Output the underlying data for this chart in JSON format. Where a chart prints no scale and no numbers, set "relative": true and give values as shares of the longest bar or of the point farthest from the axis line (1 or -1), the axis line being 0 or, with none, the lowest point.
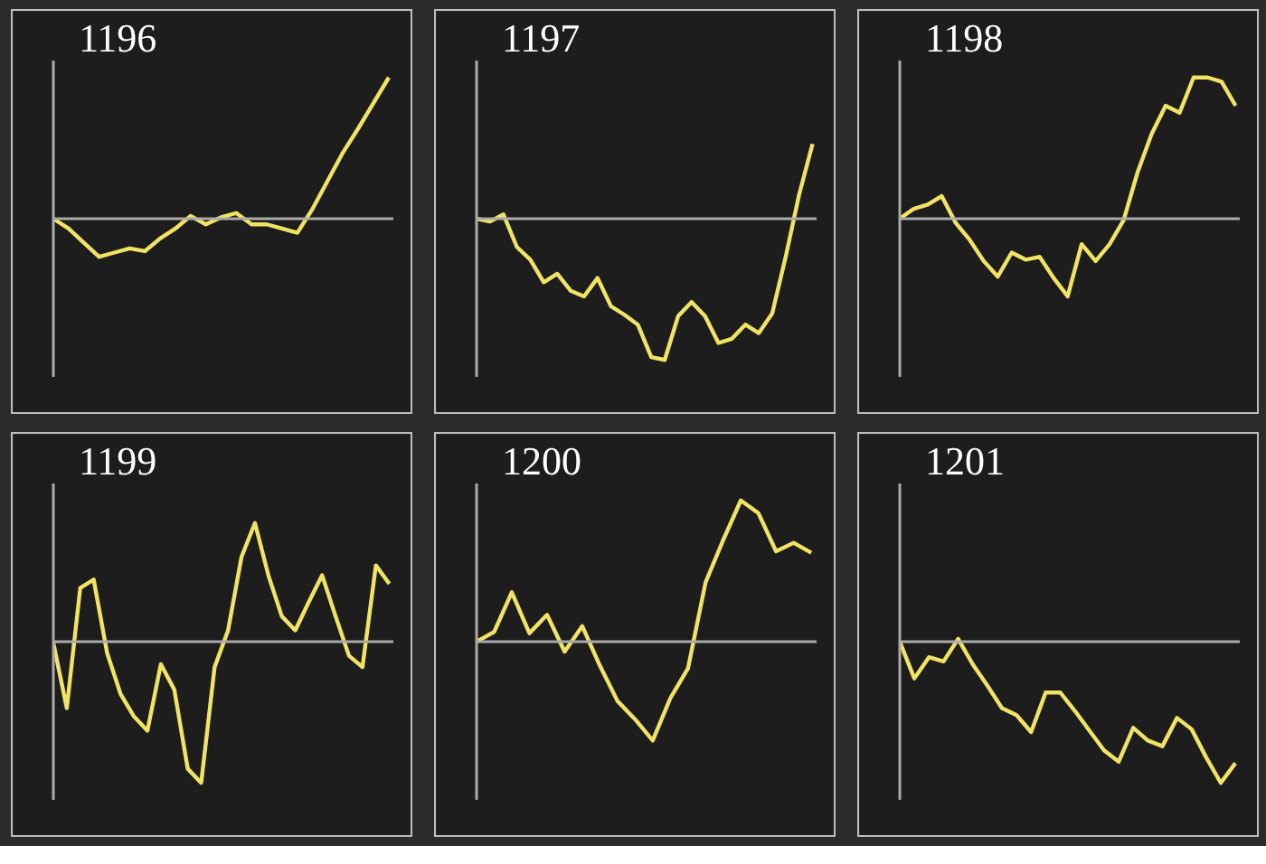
{
  "chart_data": [
    {
      "type": "line",
      "title": "1196",
      "relative": true,
      "color": "#f2e463",
      "categories": [
        null,
        null,
        null,
        null,
        null,
        null,
        null,
        null,
        null,
        null,
        null,
        null,
        null,
        null,
        null,
        null,
        null,
        null,
        null,
        null,
        null,
        null,
        null
      ],
      "values": [
        0,
        -0.07,
        -0.17,
        -0.27,
        -0.24,
        -0.21,
        -0.23,
        -0.14,
        -0.07,
        0.02,
        -0.04,
        0.01,
        0.04,
        -0.04,
        -0.04,
        -0.07,
        -0.1,
        0.07,
        0.27,
        0.47,
        0.64,
        0.82,
        1
      ]
    },
    {
      "type": "line",
      "title": "1197",
      "relative": true,
      "color": "#f2e463",
      "categories": [
        null,
        null,
        null,
        null,
        null,
        null,
        null,
        null,
        null,
        null,
        null,
        null,
        null,
        null,
        null,
        null,
        null,
        null,
        null,
        null,
        null,
        null,
        null,
        null,
        null,
        null
      ],
      "values": [
        0,
        -0.02,
        0.03,
        -0.2,
        -0.29,
        -0.45,
        -0.39,
        -0.51,
        -0.55,
        -0.42,
        -0.62,
        -0.68,
        -0.75,
        -0.98,
        -1,
        -0.69,
        -0.59,
        -0.69,
        -0.88,
        -0.85,
        -0.75,
        -0.81,
        -0.67,
        -0.27,
        0.17,
        0.53
      ]
    },
    {
      "type": "line",
      "title": "1198",
      "relative": true,
      "color": "#f2e463",
      "categories": [
        null,
        null,
        null,
        null,
        null,
        null,
        null,
        null,
        null,
        null,
        null,
        null,
        null,
        null,
        null,
        null,
        null,
        null,
        null,
        null,
        null,
        null,
        null,
        null,
        null
      ],
      "values": [
        0,
        0.07,
        0.1,
        0.16,
        -0.03,
        -0.15,
        -0.3,
        -0.41,
        -0.24,
        -0.29,
        -0.27,
        -0.42,
        -0.55,
        -0.18,
        -0.3,
        -0.18,
        -0.01,
        0.33,
        0.6,
        0.8,
        0.75,
        1,
        1,
        0.97,
        0.8
      ]
    },
    {
      "type": "line",
      "title": "1199",
      "relative": true,
      "color": "#f2e463",
      "categories": [
        null,
        null,
        null,
        null,
        null,
        null,
        null,
        null,
        null,
        null,
        null,
        null,
        null,
        null,
        null,
        null,
        null,
        null,
        null,
        null,
        null,
        null,
        null,
        null,
        null,
        null
      ],
      "values": [
        -0.01,
        -0.47,
        0.38,
        0.44,
        -0.08,
        -0.37,
        -0.53,
        -0.63,
        -0.16,
        -0.34,
        -0.9,
        -1,
        -0.18,
        0.08,
        0.6,
        0.84,
        0.47,
        0.18,
        0.08,
        0.28,
        0.47,
        0.18,
        -0.1,
        -0.18,
        0.54,
        0.41
      ]
    },
    {
      "type": "line",
      "title": "1200",
      "relative": true,
      "color": "#f2e463",
      "categories": [
        null,
        null,
        null,
        null,
        null,
        null,
        null,
        null,
        null,
        null,
        null,
        null,
        null,
        null,
        null,
        null,
        null,
        null,
        null,
        null
      ],
      "values": [
        0,
        0.07,
        0.35,
        0.06,
        0.19,
        -0.07,
        0.11,
        -0.17,
        -0.42,
        -0.55,
        -0.7,
        -0.4,
        -0.19,
        0.42,
        0.72,
        1,
        0.91,
        0.64,
        0.7,
        0.63
      ]
    },
    {
      "type": "line",
      "title": "1201",
      "relative": true,
      "color": "#f2e463",
      "categories": [
        null,
        null,
        null,
        null,
        null,
        null,
        null,
        null,
        null,
        null,
        null,
        null,
        null,
        null,
        null,
        null,
        null,
        null,
        null,
        null,
        null,
        null,
        null,
        null
      ],
      "values": [
        0,
        -0.26,
        -0.11,
        -0.14,
        0.02,
        -0.16,
        -0.31,
        -0.47,
        -0.52,
        -0.64,
        -0.36,
        -0.36,
        -0.49,
        -0.63,
        -0.77,
        -0.85,
        -0.61,
        -0.7,
        -0.74,
        -0.54,
        -0.62,
        -0.82,
        -1,
        -0.86
      ]
    }
  ]
}
